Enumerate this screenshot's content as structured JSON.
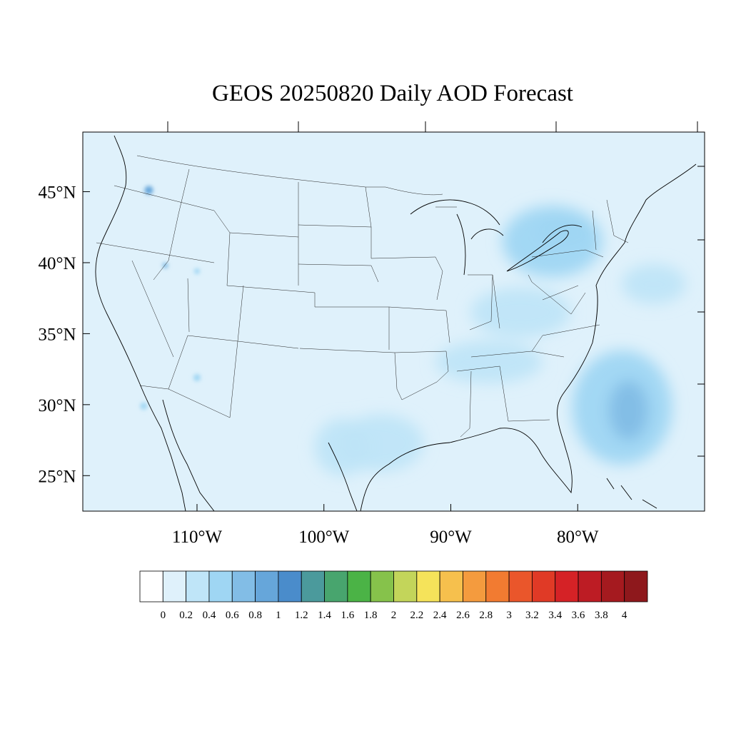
{
  "title": "GEOS 20250820 Daily AOD Forecast",
  "map": {
    "lon_range": [
      -119,
      -70
    ],
    "lat_range": [
      22.5,
      49.2
    ],
    "lat_ticks": [
      {
        "value": 45,
        "label": "45°N"
      },
      {
        "value": 40,
        "label": "40°N"
      },
      {
        "value": 35,
        "label": "35°N"
      },
      {
        "value": 30,
        "label": "30°N"
      },
      {
        "value": 25,
        "label": "25°N"
      }
    ],
    "lon_ticks": [
      {
        "value": -110,
        "label": "110°W"
      },
      {
        "value": -100,
        "label": "100°W"
      },
      {
        "value": -90,
        "label": "90°W"
      },
      {
        "value": -80,
        "label": "80°W"
      }
    ],
    "background_color": "#dff1fb"
  },
  "aod_features": [
    {
      "name": "gulf-of-mexico-plume",
      "lon": -95.5,
      "lat": 27.3,
      "aod": 0.3
    },
    {
      "name": "texas-coast-plume",
      "lon": -98.5,
      "lat": 27.0,
      "aod": 0.3
    },
    {
      "name": "southeast-band",
      "lon": -87,
      "lat": 33.0,
      "aod": 0.3
    },
    {
      "name": "appalachian-band",
      "lon": -84.5,
      "lat": 36.5,
      "aod": 0.3
    },
    {
      "name": "great-lakes-plume",
      "lon": -82,
      "lat": 41.5,
      "aod": 0.4
    },
    {
      "name": "lake-erie-core",
      "lon": -81,
      "lat": 42.3,
      "aod": 0.55
    },
    {
      "name": "atlantic-offshore-plume",
      "lon": -76.5,
      "lat": 29.8,
      "aod": 0.5
    },
    {
      "name": "atlantic-offshore-core",
      "lon": -76,
      "lat": 29.6,
      "aod": 0.75
    },
    {
      "name": "mid-atlantic-offshore",
      "lon": -74,
      "lat": 38.5,
      "aod": 0.25
    },
    {
      "name": "idaho-hotspot",
      "lon": -113.8,
      "lat": 45.1,
      "aod": 0.9
    },
    {
      "name": "utah-hotspot",
      "lon": -112.5,
      "lat": 39.8,
      "aod": 0.7
    },
    {
      "name": "arizona-hotspot",
      "lon": -110,
      "lat": 31.9,
      "aod": 0.6
    },
    {
      "name": "baja-hotspot",
      "lon": -114.2,
      "lat": 29.9,
      "aod": 0.5
    },
    {
      "name": "wyoming-hotspot",
      "lon": -110,
      "lat": 39.4,
      "aod": 0.5
    }
  ],
  "colorbar": {
    "levels": [
      "0",
      "0.2",
      "0.4",
      "0.6",
      "0.8",
      "1",
      "1.2",
      "1.4",
      "1.6",
      "1.8",
      "2",
      "2.2",
      "2.4",
      "2.6",
      "2.8",
      "3",
      "3.2",
      "3.4",
      "3.6",
      "3.8",
      "4"
    ],
    "colors": [
      "#ffffff",
      "#dff1fb",
      "#bfe5f8",
      "#9fd6f3",
      "#82bde6",
      "#66a6da",
      "#4a8ccb",
      "#4b9a9c",
      "#48a56e",
      "#4bb346",
      "#86c24b",
      "#c3d55a",
      "#f5e35a",
      "#f6c04d",
      "#f49b3e",
      "#f27b31",
      "#ea562b",
      "#e03a26",
      "#d52226",
      "#bd1c24",
      "#a51a1f",
      "#8e181c"
    ]
  }
}
